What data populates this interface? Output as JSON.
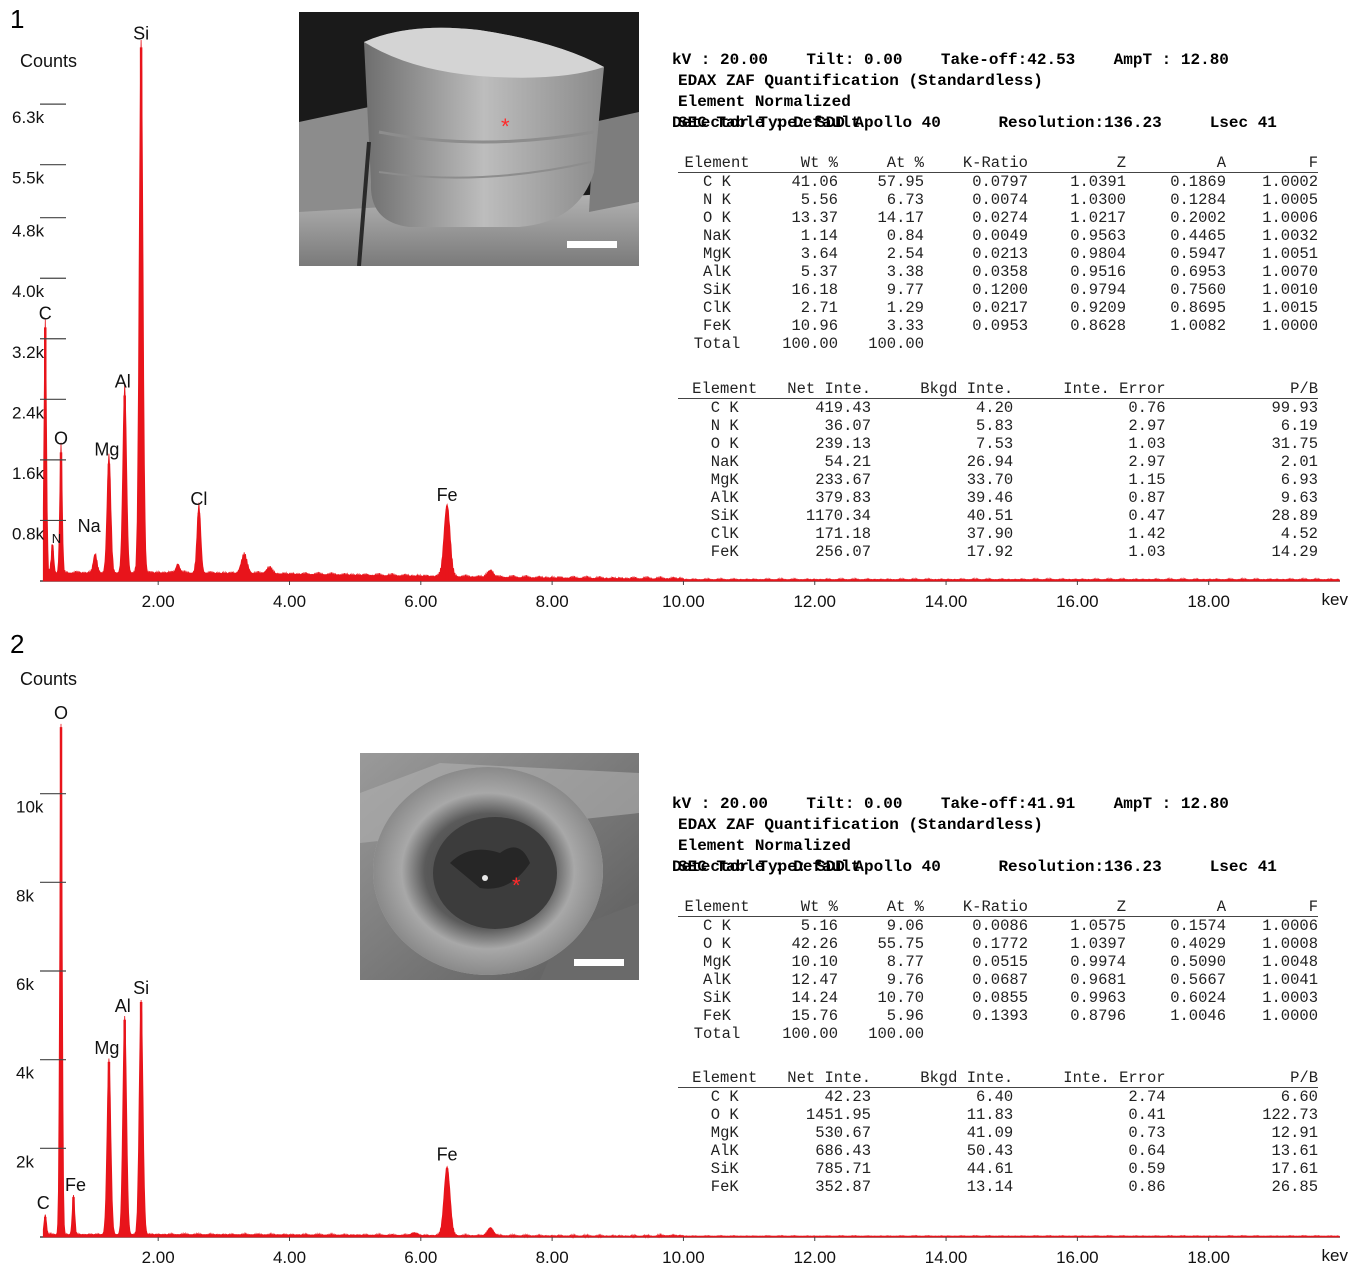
{
  "panels": [
    {
      "number": "1",
      "header": {
        "line1": "kV : 20.00    Tilt: 0.00    Take-off:42.53    AmpT : 12.80",
        "line2": "Detector Type: SDD Apollo 40      Resolution:136.23     Lsec 41",
        "quant_title": "EDAX ZAF Quantification (Standardless)",
        "normalized": "Element Normalized",
        "sec_table": "SEC Table : Default"
      },
      "zaf_table": {
        "columns": [
          "Element",
          "Wt %",
          "At %",
          "K-Ratio",
          "Z",
          "A",
          "F"
        ],
        "rows": [
          [
            "C K",
            "41.06",
            "57.95",
            "0.0797",
            "1.0391",
            "0.1869",
            "1.0002"
          ],
          [
            "N K",
            "5.56",
            "6.73",
            "0.0074",
            "1.0300",
            "0.1284",
            "1.0005"
          ],
          [
            "O K",
            "13.37",
            "14.17",
            "0.0274",
            "1.0217",
            "0.2002",
            "1.0006"
          ],
          [
            "NaK",
            "1.14",
            "0.84",
            "0.0049",
            "0.9563",
            "0.4465",
            "1.0032"
          ],
          [
            "MgK",
            "3.64",
            "2.54",
            "0.0213",
            "0.9804",
            "0.5947",
            "1.0051"
          ],
          [
            "AlK",
            "5.37",
            "3.38",
            "0.0358",
            "0.9516",
            "0.6953",
            "1.0070"
          ],
          [
            "SiK",
            "16.18",
            "9.77",
            "0.1200",
            "0.9794",
            "0.7560",
            "1.0010"
          ],
          [
            "ClK",
            "2.71",
            "1.29",
            "0.0217",
            "0.9209",
            "0.8695",
            "1.0015"
          ],
          [
            "FeK",
            "10.96",
            "3.33",
            "0.0953",
            "0.8628",
            "1.0082",
            "1.0000"
          ],
          [
            "Total",
            "100.00",
            "100.00",
            "",
            "",
            "",
            ""
          ]
        ]
      },
      "intensity_table": {
        "columns": [
          "Element",
          "Net Inte.",
          "Bkgd Inte.",
          "Inte. Error",
          "P/B"
        ],
        "rows": [
          [
            "C K",
            "419.43",
            "4.20",
            "0.76",
            "99.93"
          ],
          [
            "N K",
            "36.07",
            "5.83",
            "2.97",
            "6.19"
          ],
          [
            "O K",
            "239.13",
            "7.53",
            "1.03",
            "31.75"
          ],
          [
            "NaK",
            "54.21",
            "26.94",
            "2.97",
            "2.01"
          ],
          [
            "MgK",
            "233.67",
            "33.70",
            "1.15",
            "6.93"
          ],
          [
            "AlK",
            "379.83",
            "39.46",
            "0.87",
            "9.63"
          ],
          [
            "SiK",
            "1170.34",
            "40.51",
            "0.47",
            "28.89"
          ],
          [
            "ClK",
            "171.18",
            "37.90",
            "1.42",
            "4.52"
          ],
          [
            "FeK",
            "256.07",
            "17.92",
            "1.03",
            "14.29"
          ]
        ]
      }
    },
    {
      "number": "2",
      "header": {
        "line1": "kV : 20.00    Tilt: 0.00    Take-off:41.91    AmpT : 12.80",
        "line2": "Detector Type: SDD Apollo 40      Resolution:136.23     Lsec 41",
        "quant_title": "EDAX ZAF Quantification (Standardless)",
        "normalized": "Element Normalized",
        "sec_table": "SEC Table : Default"
      },
      "zaf_table": {
        "columns": [
          "Element",
          "Wt %",
          "At %",
          "K-Ratio",
          "Z",
          "A",
          "F"
        ],
        "rows": [
          [
            "C K",
            "5.16",
            "9.06",
            "0.0086",
            "1.0575",
            "0.1574",
            "1.0006"
          ],
          [
            "O K",
            "42.26",
            "55.75",
            "0.1772",
            "1.0397",
            "0.4029",
            "1.0008"
          ],
          [
            "MgK",
            "10.10",
            "8.77",
            "0.0515",
            "0.9974",
            "0.5090",
            "1.0048"
          ],
          [
            "AlK",
            "12.47",
            "9.76",
            "0.0687",
            "0.9681",
            "0.5667",
            "1.0041"
          ],
          [
            "SiK",
            "14.24",
            "10.70",
            "0.0855",
            "0.9963",
            "0.6024",
            "1.0003"
          ],
          [
            "FeK",
            "15.76",
            "5.96",
            "0.1393",
            "0.8796",
            "1.0046",
            "1.0000"
          ],
          [
            "Total",
            "100.00",
            "100.00",
            "",
            "",
            "",
            ""
          ]
        ]
      },
      "intensity_table": {
        "columns": [
          "Element",
          "Net Inte.",
          "Bkgd Inte.",
          "Inte. Error",
          "P/B"
        ],
        "rows": [
          [
            "C K",
            "42.23",
            "6.40",
            "2.74",
            "6.60"
          ],
          [
            "O K",
            "1451.95",
            "11.83",
            "0.41",
            "122.73"
          ],
          [
            "MgK",
            "530.67",
            "41.09",
            "0.73",
            "12.91"
          ],
          [
            "AlK",
            "686.43",
            "50.43",
            "0.64",
            "13.61"
          ],
          [
            "SiK",
            "785.71",
            "44.61",
            "0.59",
            "17.61"
          ],
          [
            "FeK",
            "352.87",
            "13.14",
            "0.86",
            "26.85"
          ]
        ]
      }
    }
  ],
  "chart_data": [
    {
      "type": "area",
      "color": "#e8141b",
      "ylabel": "Counts",
      "xlabel": "kev",
      "xlim": [
        0.2,
        20.0
      ],
      "ylim": [
        0,
        7200
      ],
      "x_ticks": [
        2,
        4,
        6,
        8,
        10,
        12,
        14,
        16,
        18
      ],
      "x_tick_labels": [
        "2.00",
        "4.00",
        "6.00",
        "8.00",
        "10.00",
        "12.00",
        "14.00",
        "16.00",
        "18.00"
      ],
      "y_ticks": [
        800,
        1600,
        2400,
        3200,
        4000,
        4800,
        5500,
        6300
      ],
      "y_tick_labels": [
        "0.8k",
        "1.6k",
        "2.4k",
        "3.2k",
        "4.0k",
        "4.8k",
        "5.5k",
        "6.3k"
      ],
      "peaks": [
        {
          "label": "C",
          "energy": 0.28,
          "counts": 3350
        },
        {
          "label": "N",
          "energy": 0.39,
          "counts": 400
        },
        {
          "label": "O",
          "energy": 0.52,
          "counts": 1700
        },
        {
          "label": "Na",
          "energy": 1.04,
          "counts": 250
        },
        {
          "label": "Mg",
          "energy": 1.25,
          "counts": 1550
        },
        {
          "label": "Al",
          "energy": 1.49,
          "counts": 2450
        },
        {
          "label": "Si",
          "energy": 1.74,
          "counts": 7050
        },
        {
          "label": "Cl",
          "energy": 2.62,
          "counts": 900
        },
        {
          "label": "Fe",
          "energy": 6.4,
          "counts": 950
        }
      ],
      "minor_peaks": [
        {
          "energy": 2.3,
          "counts": 120
        },
        {
          "energy": 3.31,
          "counts": 250
        },
        {
          "energy": 3.69,
          "counts": 80
        },
        {
          "energy": 7.06,
          "counts": 90
        }
      ]
    },
    {
      "type": "area",
      "color": "#e8141b",
      "ylabel": "Counts",
      "xlabel": "kev",
      "xlim": [
        0.2,
        20.0
      ],
      "ylim": [
        0,
        12000
      ],
      "x_ticks": [
        2,
        4,
        6,
        8,
        10,
        12,
        14,
        16,
        18
      ],
      "x_tick_labels": [
        "2.00",
        "4.00",
        "6.00",
        "8.00",
        "10.00",
        "12.00",
        "14.00",
        "16.00",
        "18.00"
      ],
      "y_ticks": [
        2000,
        4000,
        6000,
        8000,
        10000
      ],
      "y_tick_labels": [
        "2k",
        "4k",
        "6k",
        "8k",
        "10k"
      ],
      "peaks": [
        {
          "label": "C",
          "energy": 0.28,
          "counts": 450
        },
        {
          "label": "O",
          "energy": 0.52,
          "counts": 11500
        },
        {
          "label": "Fe",
          "energy": 0.71,
          "counts": 900
        },
        {
          "label": "Mg",
          "energy": 1.25,
          "counts": 3950
        },
        {
          "label": "Al",
          "energy": 1.49,
          "counts": 4900
        },
        {
          "label": "Si",
          "energy": 1.74,
          "counts": 5300
        },
        {
          "label": "Fe",
          "energy": 6.4,
          "counts": 1550
        }
      ],
      "minor_peaks": [
        {
          "energy": 5.9,
          "counts": 60
        },
        {
          "energy": 7.06,
          "counts": 180
        }
      ]
    }
  ]
}
